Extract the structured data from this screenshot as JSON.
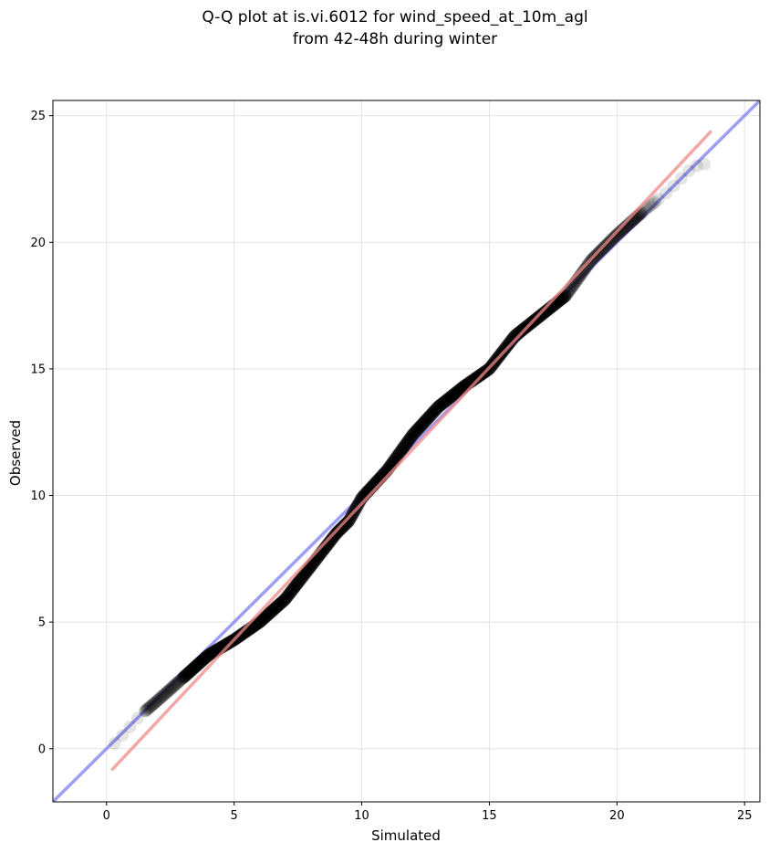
{
  "chart_data": {
    "type": "scatter",
    "title": [
      "Q-Q plot at is.vi.6012 for wind_speed_at_10m_agl",
      "from 42-48h during winter"
    ],
    "xlabel": "Simulated",
    "ylabel": "Observed",
    "xlim": [
      -2.1,
      25.6
    ],
    "ylim": [
      -2.1,
      25.6
    ],
    "xticks": [
      0,
      5,
      10,
      15,
      20,
      25
    ],
    "yticks": [
      0,
      5,
      10,
      15,
      20,
      25
    ],
    "xtick_labels": [
      "0",
      "5",
      "10",
      "15",
      "20",
      "25"
    ],
    "ytick_labels": [
      "0",
      "5",
      "10",
      "15",
      "20",
      "25"
    ],
    "grid": true,
    "legend": false,
    "reference_line": {
      "x": [
        -2.1,
        25.6
      ],
      "y": [
        -2.1,
        25.6
      ],
      "color": "#7d7df0"
    },
    "fit_line": {
      "x": [
        0.2,
        23.7
      ],
      "y": [
        -0.85,
        24.4
      ],
      "color": "#f08a8a"
    },
    "quantile_curve": [
      [
        0.2,
        0.1
      ],
      [
        0.7,
        0.6
      ],
      [
        1.3,
        1.3
      ],
      [
        2.0,
        1.9
      ],
      [
        3.0,
        2.8
      ],
      [
        4.0,
        3.7
      ],
      [
        5.0,
        4.3
      ],
      [
        6.0,
        5.0
      ],
      [
        7.0,
        5.9
      ],
      [
        8.0,
        7.2
      ],
      [
        9.0,
        8.5
      ],
      [
        9.5,
        9.0
      ],
      [
        10.0,
        9.9
      ],
      [
        11.0,
        11.0
      ],
      [
        12.0,
        12.4
      ],
      [
        13.0,
        13.5
      ],
      [
        14.0,
        14.3
      ],
      [
        15.0,
        15.0
      ],
      [
        16.0,
        16.3
      ],
      [
        17.0,
        17.1
      ],
      [
        18.0,
        17.9
      ],
      [
        19.0,
        19.3
      ],
      [
        20.0,
        20.3
      ],
      [
        21.0,
        21.2
      ],
      [
        22.0,
        22.0
      ],
      [
        23.0,
        23.0
      ],
      [
        23.5,
        23.1
      ]
    ],
    "colors": {
      "points": "#000000",
      "reference": "#7d7df0",
      "fit": "#f08a8a",
      "grid": "#e3e3e3"
    }
  }
}
